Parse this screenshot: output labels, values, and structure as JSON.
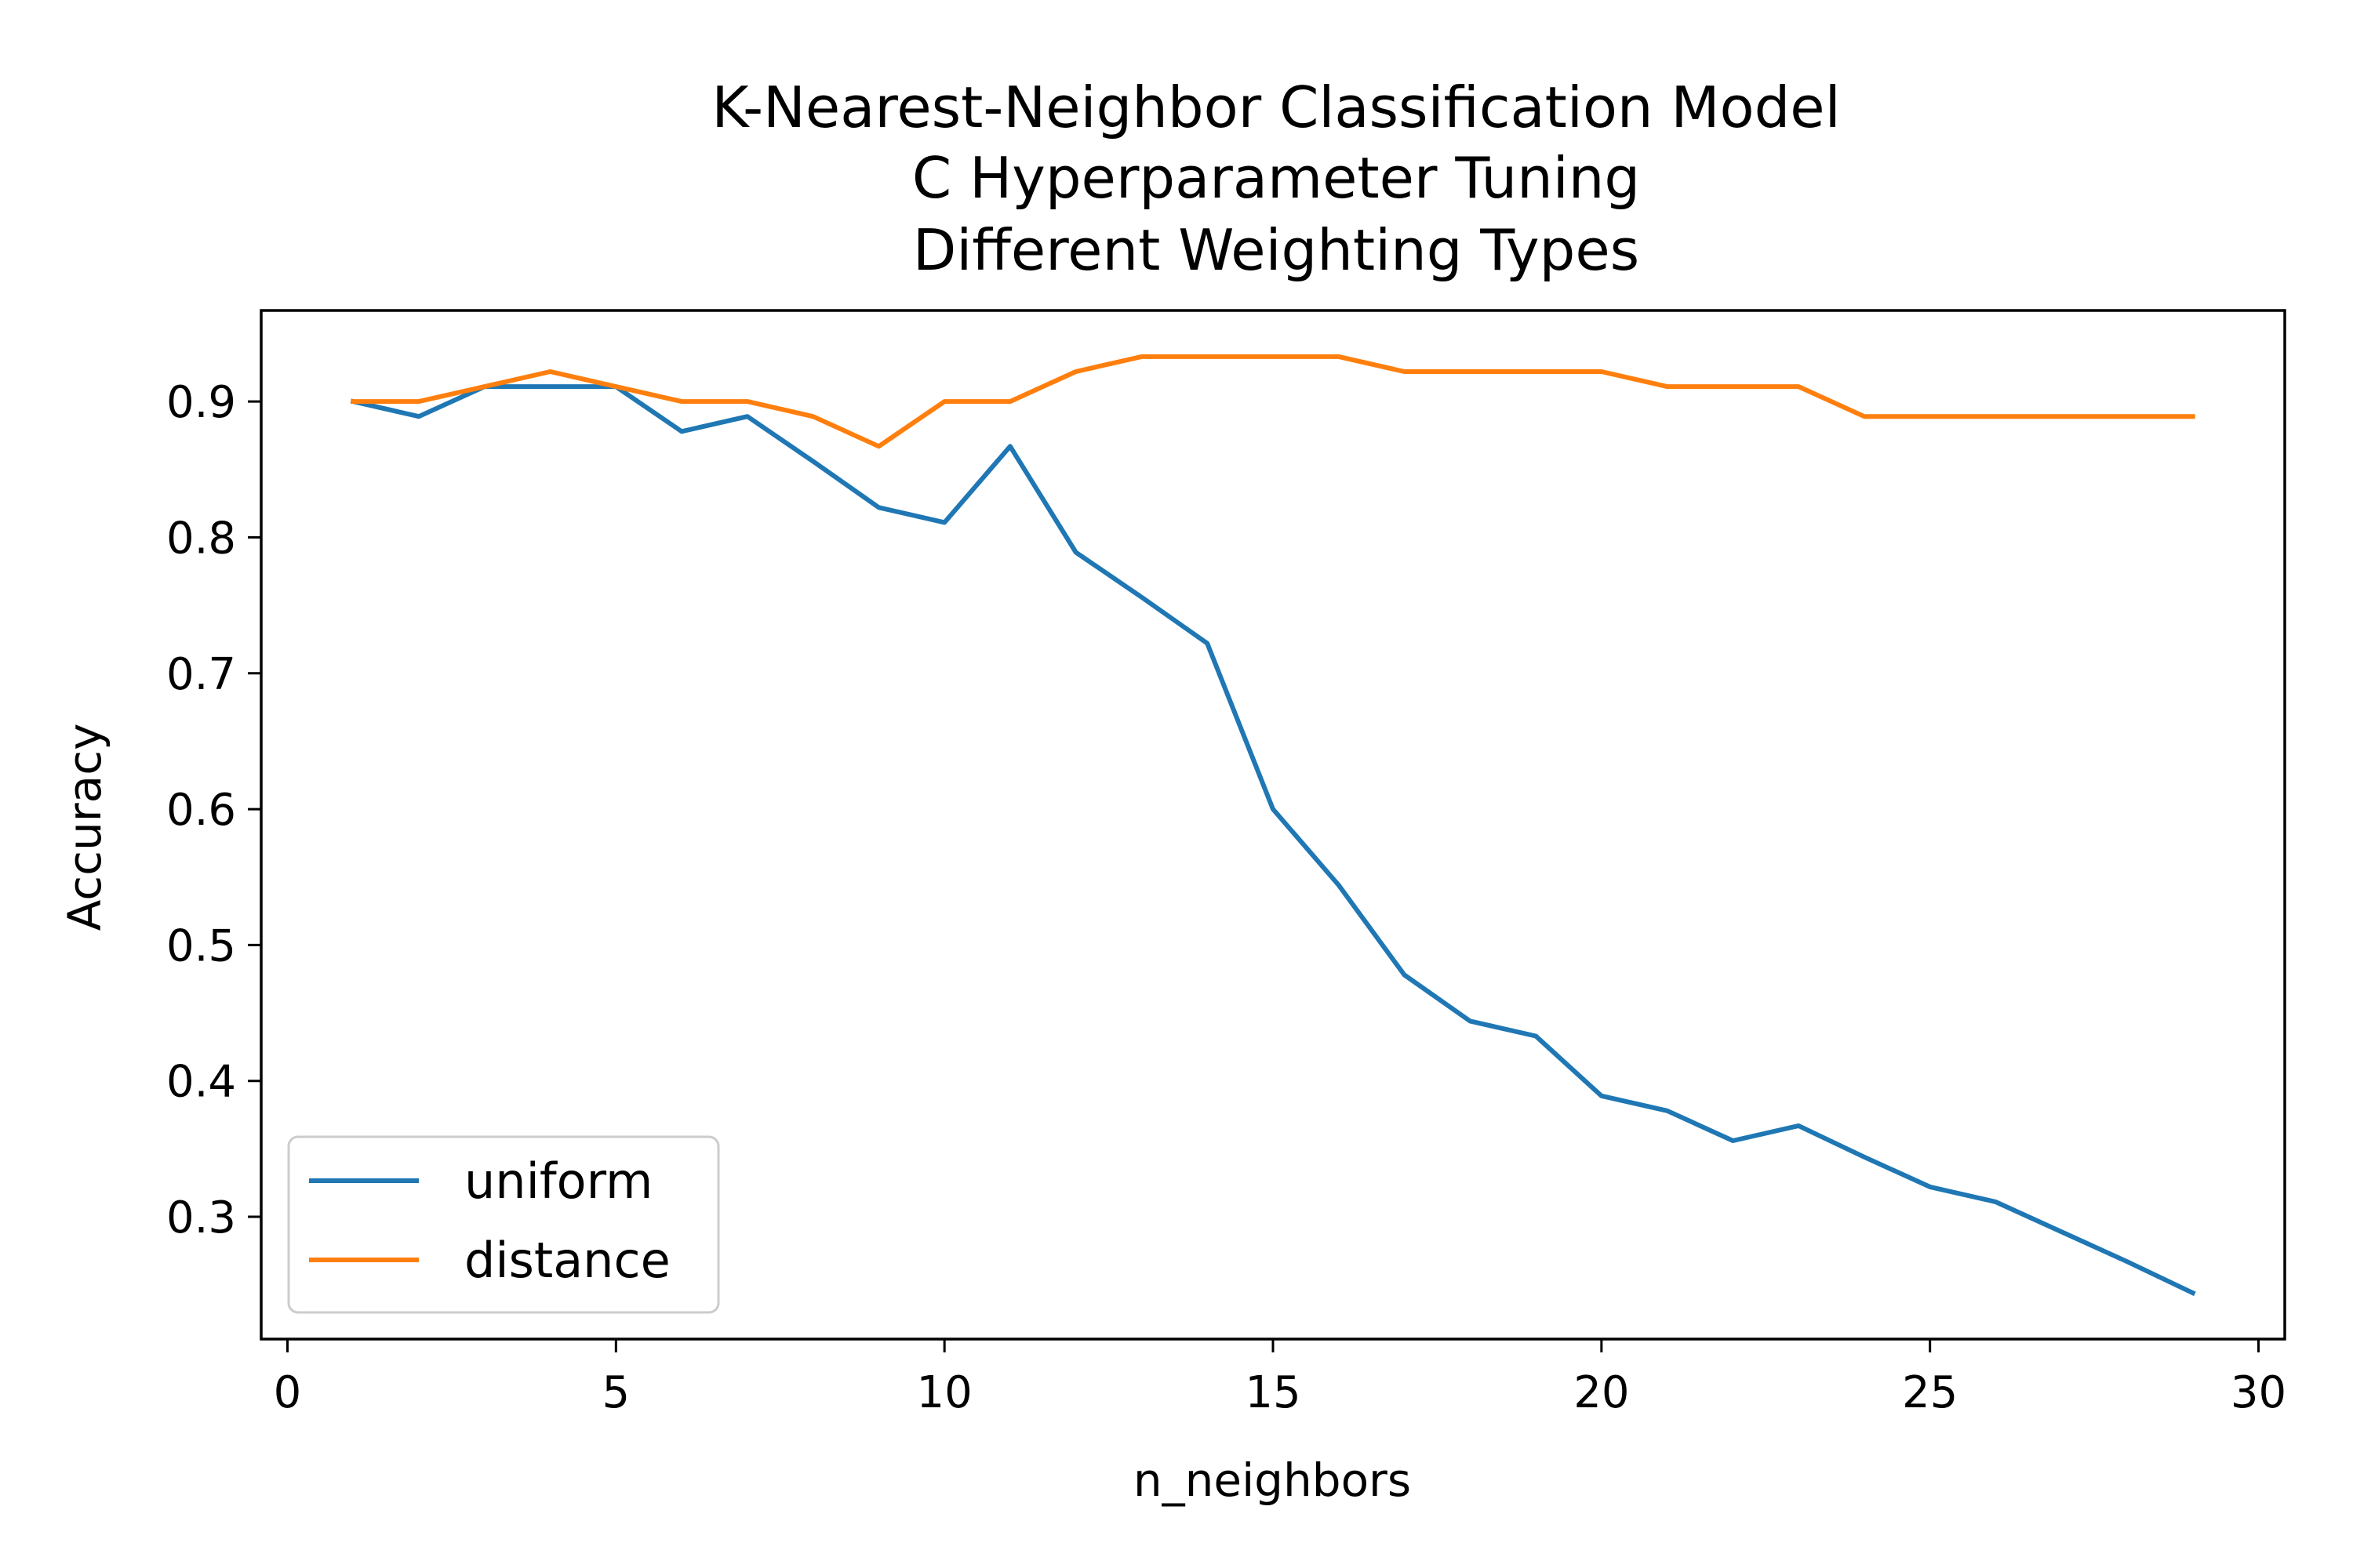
{
  "chart_data": {
    "type": "line",
    "title_lines": [
      "K-Nearest-Neighbor Classification Model",
      "C Hyperparameter Tuning",
      "Different Weighting Types"
    ],
    "xlabel": "n_neighbors",
    "ylabel": "Accuracy",
    "xlim": [
      -0.4,
      30.4
    ],
    "ylim": [
      0.21,
      0.967
    ],
    "xticks": [
      0,
      5,
      10,
      15,
      20,
      25,
      30
    ],
    "xtick_labels": [
      "0",
      "5",
      "10",
      "15",
      "20",
      "25",
      "30"
    ],
    "yticks": [
      0.3,
      0.4,
      0.5,
      0.6,
      0.7,
      0.8,
      0.9
    ],
    "ytick_labels": [
      "0.3",
      "0.4",
      "0.5",
      "0.6",
      "0.7",
      "0.8",
      "0.9"
    ],
    "legend_position": "lower-left",
    "x": [
      1,
      2,
      3,
      4,
      5,
      6,
      7,
      8,
      9,
      10,
      11,
      12,
      13,
      14,
      15,
      16,
      17,
      18,
      19,
      20,
      21,
      22,
      23,
      24,
      25,
      26,
      27,
      28,
      29
    ],
    "series": [
      {
        "name": "uniform",
        "color": "#1f77b4",
        "values": [
          0.9,
          0.889,
          0.911,
          0.911,
          0.911,
          0.878,
          0.889,
          0.856,
          0.822,
          0.811,
          0.867,
          0.789,
          0.756,
          0.722,
          0.6,
          0.544,
          0.478,
          0.444,
          0.433,
          0.389,
          0.378,
          0.356,
          0.367,
          0.344,
          0.322,
          0.311,
          0.289,
          0.267,
          0.244
        ]
      },
      {
        "name": "distance",
        "color": "#ff7f0e",
        "values": [
          0.9,
          0.9,
          0.911,
          0.922,
          0.911,
          0.9,
          0.9,
          0.889,
          0.867,
          0.9,
          0.9,
          0.922,
          0.933,
          0.933,
          0.933,
          0.933,
          0.922,
          0.922,
          0.922,
          0.922,
          0.911,
          0.911,
          0.911,
          0.889,
          0.889,
          0.889,
          0.889,
          0.889,
          0.889
        ]
      }
    ]
  }
}
